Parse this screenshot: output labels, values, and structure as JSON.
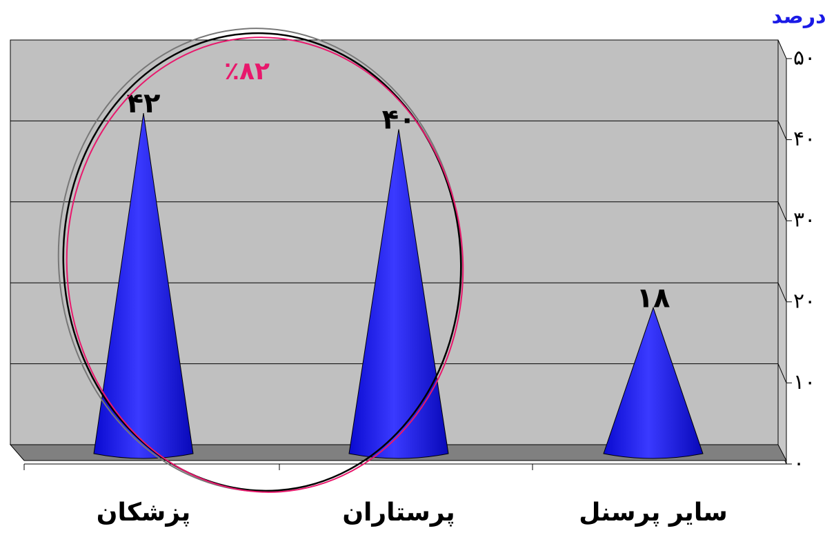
{
  "chart_data": {
    "type": "cone",
    "y_label": "درصد",
    "annotation": "٪۸۲",
    "categories": [
      "پزشکان",
      "پرستاران",
      "سایر پرسنل"
    ],
    "values": [
      42,
      40,
      18
    ],
    "value_labels": [
      "۴۲",
      "۴۰",
      "۱۸"
    ],
    "color": "#1616f0",
    "ylim": [
      0,
      50
    ],
    "yticks": [
      {
        "value": 0,
        "label": "۰"
      },
      {
        "value": 10,
        "label": "۱۰"
      },
      {
        "value": 20,
        "label": "۲۰"
      },
      {
        "value": 30,
        "label": "۳۰"
      },
      {
        "value": 40,
        "label": "۴۰"
      },
      {
        "value": 50,
        "label": "۵۰"
      }
    ],
    "grid": true
  }
}
